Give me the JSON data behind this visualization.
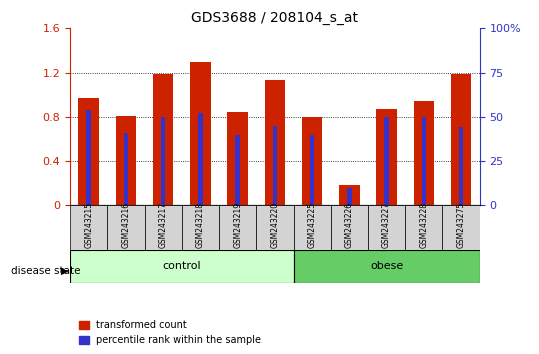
{
  "title": "GDS3688 / 208104_s_at",
  "samples": [
    "GSM243215",
    "GSM243216",
    "GSM243217",
    "GSM243218",
    "GSM243219",
    "GSM243220",
    "GSM243225",
    "GSM243226",
    "GSM243227",
    "GSM243228",
    "GSM243275"
  ],
  "red_values": [
    0.97,
    0.81,
    1.19,
    1.3,
    0.84,
    1.13,
    0.8,
    0.18,
    0.87,
    0.94,
    1.19
  ],
  "blue_pct": [
    54,
    41,
    50,
    52,
    40,
    45,
    40,
    10,
    50,
    50,
    44
  ],
  "n_control": 6,
  "n_obese": 5,
  "ylim_left": [
    0,
    1.6
  ],
  "ylim_right": [
    0,
    100
  ],
  "yticks_left": [
    0,
    0.4,
    0.8,
    1.2,
    1.6
  ],
  "yticks_right": [
    0,
    25,
    50,
    75,
    100
  ],
  "ytick_labels_left": [
    "0",
    "0.4",
    "0.8",
    "1.2",
    "1.6"
  ],
  "ytick_labels_right": [
    "0",
    "25",
    "50",
    "75",
    "100%"
  ],
  "bar_color": "#cc2200",
  "blue_color": "#3333cc",
  "control_bg": "#ccffcc",
  "obese_bg": "#66cc66",
  "sample_bg": "#d3d3d3",
  "bar_width": 0.55,
  "blue_bar_width": 0.12,
  "legend_red": "transformed count",
  "legend_blue": "percentile rank within the sample",
  "disease_state_label": "disease state",
  "control_label": "control",
  "obese_label": "obese"
}
